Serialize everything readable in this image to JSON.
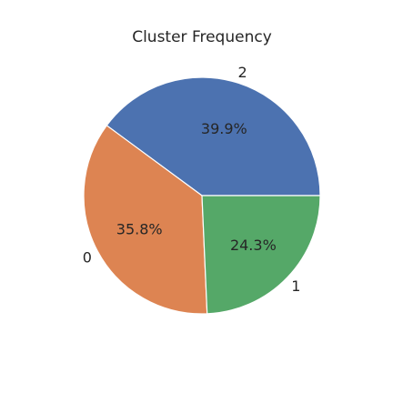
{
  "chart_data": {
    "type": "pie",
    "title": "Cluster Frequency",
    "slices": [
      {
        "label": "2",
        "value": 39.9,
        "pct_label": "39.9%",
        "color": "#4c72b0"
      },
      {
        "label": "0",
        "value": 35.8,
        "pct_label": "35.8%",
        "color": "#dd8452"
      },
      {
        "label": "1",
        "value": 24.3,
        "pct_label": "24.3%",
        "color": "#55a868"
      }
    ],
    "start_angle_deg": 0,
    "direction": "counterclockwise"
  }
}
